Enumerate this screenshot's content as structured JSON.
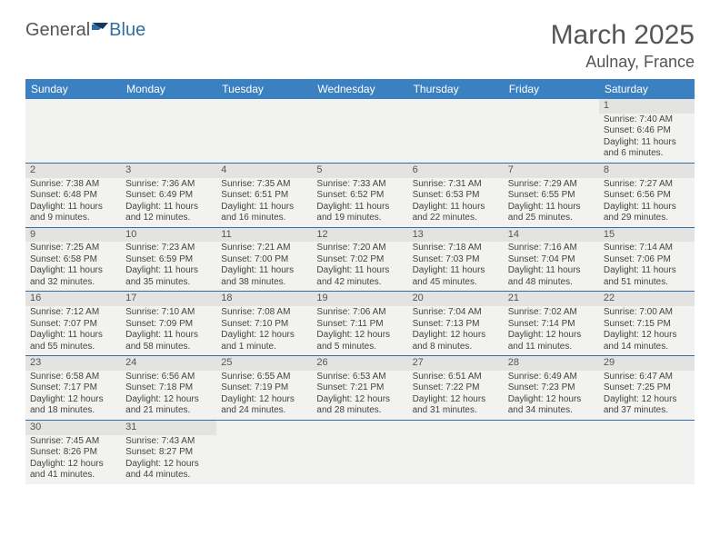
{
  "logo": {
    "part1": "General",
    "part2": "Blue"
  },
  "header": {
    "title": "March 2025",
    "location": "Aulnay, France"
  },
  "colors": {
    "header_bg": "#3b81c2",
    "row_border": "#2f6fa7",
    "cell_bg": "#f2f2f0",
    "daynum_bg": "#e3e3e1"
  },
  "weekdays": [
    "Sunday",
    "Monday",
    "Tuesday",
    "Wednesday",
    "Thursday",
    "Friday",
    "Saturday"
  ],
  "weeks": [
    [
      null,
      null,
      null,
      null,
      null,
      null,
      {
        "n": "1",
        "sr": "Sunrise: 7:40 AM",
        "ss": "Sunset: 6:46 PM",
        "dl1": "Daylight: 11 hours",
        "dl2": "and 6 minutes."
      }
    ],
    [
      {
        "n": "2",
        "sr": "Sunrise: 7:38 AM",
        "ss": "Sunset: 6:48 PM",
        "dl1": "Daylight: 11 hours",
        "dl2": "and 9 minutes."
      },
      {
        "n": "3",
        "sr": "Sunrise: 7:36 AM",
        "ss": "Sunset: 6:49 PM",
        "dl1": "Daylight: 11 hours",
        "dl2": "and 12 minutes."
      },
      {
        "n": "4",
        "sr": "Sunrise: 7:35 AM",
        "ss": "Sunset: 6:51 PM",
        "dl1": "Daylight: 11 hours",
        "dl2": "and 16 minutes."
      },
      {
        "n": "5",
        "sr": "Sunrise: 7:33 AM",
        "ss": "Sunset: 6:52 PM",
        "dl1": "Daylight: 11 hours",
        "dl2": "and 19 minutes."
      },
      {
        "n": "6",
        "sr": "Sunrise: 7:31 AM",
        "ss": "Sunset: 6:53 PM",
        "dl1": "Daylight: 11 hours",
        "dl2": "and 22 minutes."
      },
      {
        "n": "7",
        "sr": "Sunrise: 7:29 AM",
        "ss": "Sunset: 6:55 PM",
        "dl1": "Daylight: 11 hours",
        "dl2": "and 25 minutes."
      },
      {
        "n": "8",
        "sr": "Sunrise: 7:27 AM",
        "ss": "Sunset: 6:56 PM",
        "dl1": "Daylight: 11 hours",
        "dl2": "and 29 minutes."
      }
    ],
    [
      {
        "n": "9",
        "sr": "Sunrise: 7:25 AM",
        "ss": "Sunset: 6:58 PM",
        "dl1": "Daylight: 11 hours",
        "dl2": "and 32 minutes."
      },
      {
        "n": "10",
        "sr": "Sunrise: 7:23 AM",
        "ss": "Sunset: 6:59 PM",
        "dl1": "Daylight: 11 hours",
        "dl2": "and 35 minutes."
      },
      {
        "n": "11",
        "sr": "Sunrise: 7:21 AM",
        "ss": "Sunset: 7:00 PM",
        "dl1": "Daylight: 11 hours",
        "dl2": "and 38 minutes."
      },
      {
        "n": "12",
        "sr": "Sunrise: 7:20 AM",
        "ss": "Sunset: 7:02 PM",
        "dl1": "Daylight: 11 hours",
        "dl2": "and 42 minutes."
      },
      {
        "n": "13",
        "sr": "Sunrise: 7:18 AM",
        "ss": "Sunset: 7:03 PM",
        "dl1": "Daylight: 11 hours",
        "dl2": "and 45 minutes."
      },
      {
        "n": "14",
        "sr": "Sunrise: 7:16 AM",
        "ss": "Sunset: 7:04 PM",
        "dl1": "Daylight: 11 hours",
        "dl2": "and 48 minutes."
      },
      {
        "n": "15",
        "sr": "Sunrise: 7:14 AM",
        "ss": "Sunset: 7:06 PM",
        "dl1": "Daylight: 11 hours",
        "dl2": "and 51 minutes."
      }
    ],
    [
      {
        "n": "16",
        "sr": "Sunrise: 7:12 AM",
        "ss": "Sunset: 7:07 PM",
        "dl1": "Daylight: 11 hours",
        "dl2": "and 55 minutes."
      },
      {
        "n": "17",
        "sr": "Sunrise: 7:10 AM",
        "ss": "Sunset: 7:09 PM",
        "dl1": "Daylight: 11 hours",
        "dl2": "and 58 minutes."
      },
      {
        "n": "18",
        "sr": "Sunrise: 7:08 AM",
        "ss": "Sunset: 7:10 PM",
        "dl1": "Daylight: 12 hours",
        "dl2": "and 1 minute."
      },
      {
        "n": "19",
        "sr": "Sunrise: 7:06 AM",
        "ss": "Sunset: 7:11 PM",
        "dl1": "Daylight: 12 hours",
        "dl2": "and 5 minutes."
      },
      {
        "n": "20",
        "sr": "Sunrise: 7:04 AM",
        "ss": "Sunset: 7:13 PM",
        "dl1": "Daylight: 12 hours",
        "dl2": "and 8 minutes."
      },
      {
        "n": "21",
        "sr": "Sunrise: 7:02 AM",
        "ss": "Sunset: 7:14 PM",
        "dl1": "Daylight: 12 hours",
        "dl2": "and 11 minutes."
      },
      {
        "n": "22",
        "sr": "Sunrise: 7:00 AM",
        "ss": "Sunset: 7:15 PM",
        "dl1": "Daylight: 12 hours",
        "dl2": "and 14 minutes."
      }
    ],
    [
      {
        "n": "23",
        "sr": "Sunrise: 6:58 AM",
        "ss": "Sunset: 7:17 PM",
        "dl1": "Daylight: 12 hours",
        "dl2": "and 18 minutes."
      },
      {
        "n": "24",
        "sr": "Sunrise: 6:56 AM",
        "ss": "Sunset: 7:18 PM",
        "dl1": "Daylight: 12 hours",
        "dl2": "and 21 minutes."
      },
      {
        "n": "25",
        "sr": "Sunrise: 6:55 AM",
        "ss": "Sunset: 7:19 PM",
        "dl1": "Daylight: 12 hours",
        "dl2": "and 24 minutes."
      },
      {
        "n": "26",
        "sr": "Sunrise: 6:53 AM",
        "ss": "Sunset: 7:21 PM",
        "dl1": "Daylight: 12 hours",
        "dl2": "and 28 minutes."
      },
      {
        "n": "27",
        "sr": "Sunrise: 6:51 AM",
        "ss": "Sunset: 7:22 PM",
        "dl1": "Daylight: 12 hours",
        "dl2": "and 31 minutes."
      },
      {
        "n": "28",
        "sr": "Sunrise: 6:49 AM",
        "ss": "Sunset: 7:23 PM",
        "dl1": "Daylight: 12 hours",
        "dl2": "and 34 minutes."
      },
      {
        "n": "29",
        "sr": "Sunrise: 6:47 AM",
        "ss": "Sunset: 7:25 PM",
        "dl1": "Daylight: 12 hours",
        "dl2": "and 37 minutes."
      }
    ],
    [
      {
        "n": "30",
        "sr": "Sunrise: 7:45 AM",
        "ss": "Sunset: 8:26 PM",
        "dl1": "Daylight: 12 hours",
        "dl2": "and 41 minutes."
      },
      {
        "n": "31",
        "sr": "Sunrise: 7:43 AM",
        "ss": "Sunset: 8:27 PM",
        "dl1": "Daylight: 12 hours",
        "dl2": "and 44 minutes."
      },
      null,
      null,
      null,
      null,
      null
    ]
  ]
}
